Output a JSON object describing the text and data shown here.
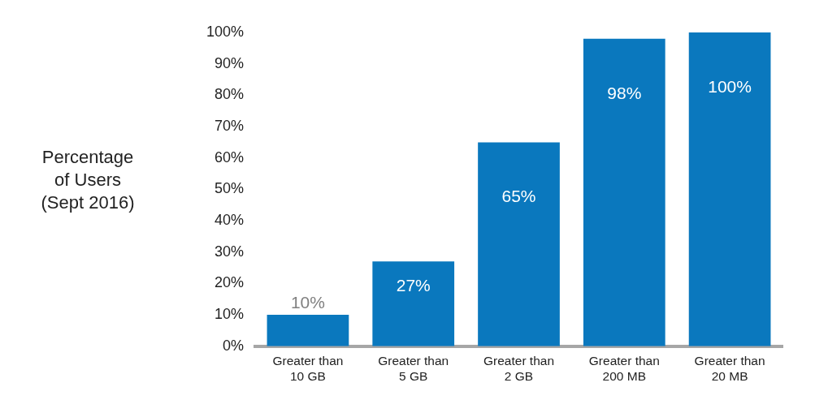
{
  "chart_data": {
    "type": "bar",
    "ylabel": "Percentage of Users (Sept 2016)",
    "categories": [
      "Greater than 10 GB",
      "Greater than 5 GB",
      "Greater than 2 GB",
      "Greater than 200 MB",
      "Greater than 20 MB"
    ],
    "values": [
      10,
      27,
      65,
      98,
      100
    ],
    "color": "#0a78be",
    "value_labels": [
      "10%",
      "27%",
      "65%",
      "98%",
      "100%"
    ],
    "grid": false,
    "legend": false,
    "ylim": [
      0,
      100
    ],
    "yticks": [
      {
        "value": 0,
        "label": "0%"
      },
      {
        "value": 10,
        "label": "10%"
      },
      {
        "value": 20,
        "label": "20%"
      },
      {
        "value": 30,
        "label": "30%"
      },
      {
        "value": 40,
        "label": "40%"
      },
      {
        "value": 50,
        "label": "50%"
      },
      {
        "value": 60,
        "label": "60%"
      },
      {
        "value": 70,
        "label": "70%"
      },
      {
        "value": 80,
        "label": "80%"
      },
      {
        "value": 90,
        "label": "90%"
      },
      {
        "value": 100,
        "label": "100%"
      }
    ]
  }
}
